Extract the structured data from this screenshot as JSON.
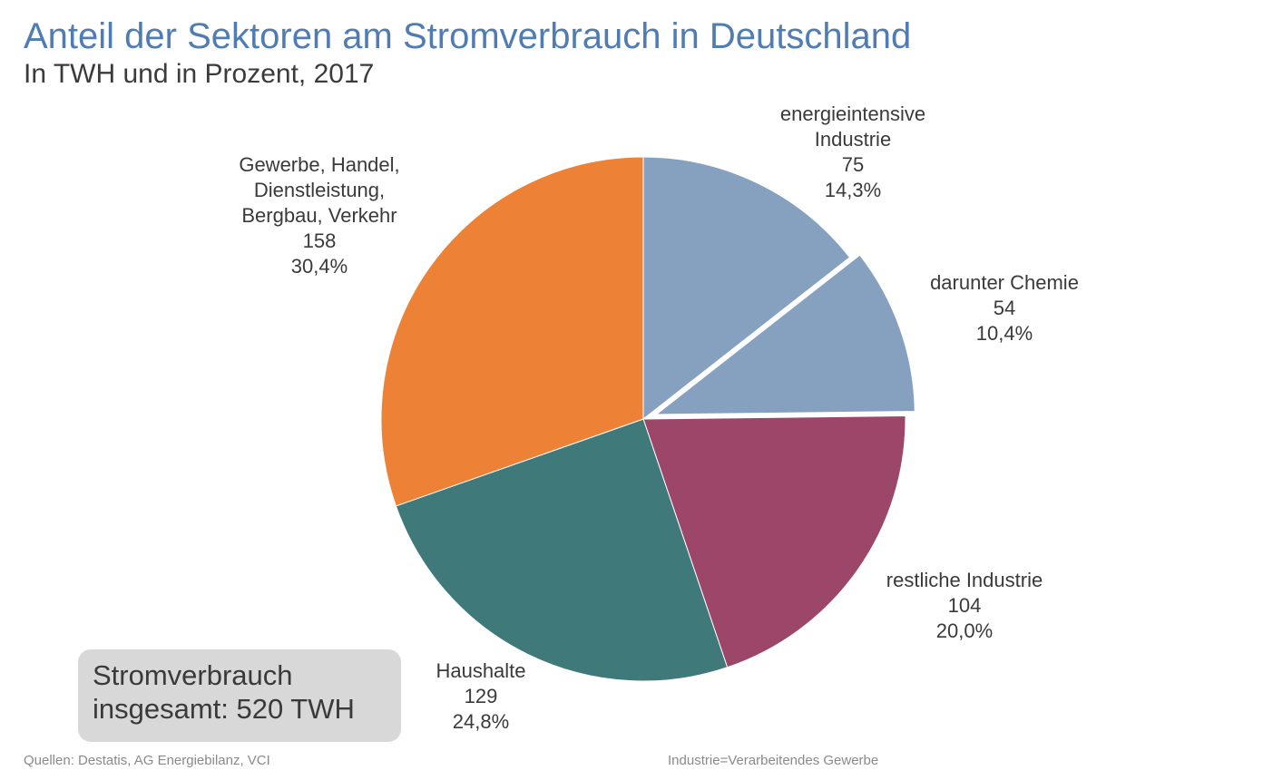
{
  "title": "Anteil der Sektoren am Stromverbrauch in Deutschland",
  "subtitle": "In TWH und in Prozent, 2017",
  "chart_data": {
    "type": "pie",
    "slices": [
      {
        "label_lines": [
          "energieintensive",
          "Industrie"
        ],
        "value": 75,
        "value_label": "75",
        "percent_label": "14,3%",
        "color": "#86a1c0",
        "exploded": false
      },
      {
        "label_lines": [
          "darunter Chemie"
        ],
        "value": 54,
        "value_label": "54",
        "percent_label": "10,4%",
        "color": "#86a1c0",
        "exploded": true
      },
      {
        "label_lines": [
          "restliche Industrie"
        ],
        "value": 104,
        "value_label": "104",
        "percent_label": "20,0%",
        "color": "#9c4669",
        "exploded": false
      },
      {
        "label_lines": [
          "Haushalte"
        ],
        "value": 129,
        "value_label": "129",
        "percent_label": "24,8%",
        "color": "#40797a",
        "exploded": false
      },
      {
        "label_lines": [
          "Gewerbe, Handel,",
          "Dienstleistung,",
          "Bergbau, Verkehr"
        ],
        "value": 158,
        "value_label": "158",
        "percent_label": "30,4%",
        "color": "#ed8236",
        "exploded": false
      }
    ]
  },
  "total_box": {
    "line1": "Stromverbrauch",
    "line2": "insgesamt: 520 TWH"
  },
  "footer": {
    "sources": "Quellen: Destatis, AG Energiebilanz, VCI",
    "note": "Industrie=Verarbeitendes Gewerbe"
  }
}
